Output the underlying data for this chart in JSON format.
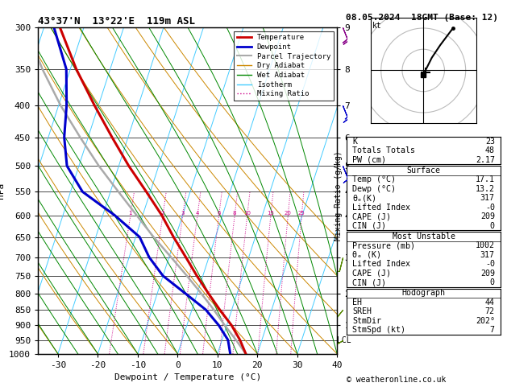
{
  "title_left": "43°37'N  13°22'E  119m ASL",
  "title_right": "08.05.2024  18GMT (Base: 12)",
  "xlabel": "Dewpoint / Temperature (°C)",
  "ylabel_left": "hPa",
  "x_min": -35,
  "x_max": 40,
  "y_pressures": [
    300,
    350,
    400,
    450,
    500,
    550,
    600,
    650,
    700,
    750,
    800,
    850,
    900,
    950,
    1000
  ],
  "pressure_min": 300,
  "pressure_max": 1000,
  "temp_profile": {
    "pressure": [
      1000,
      950,
      900,
      850,
      800,
      750,
      700,
      650,
      600,
      550,
      500,
      450,
      400,
      350,
      300
    ],
    "temp": [
      17.1,
      14.5,
      11.2,
      7.0,
      2.8,
      -1.5,
      -5.8,
      -10.5,
      -15.2,
      -21.0,
      -27.5,
      -34.0,
      -41.0,
      -48.5,
      -56.0
    ],
    "color": "#cc0000",
    "linewidth": 2.2
  },
  "dewpoint_profile": {
    "pressure": [
      1000,
      950,
      900,
      850,
      800,
      750,
      700,
      650,
      600,
      550,
      500,
      450,
      400,
      350,
      300
    ],
    "temp": [
      13.2,
      11.5,
      8.0,
      3.5,
      -3.0,
      -10.0,
      -15.0,
      -19.0,
      -27.0,
      -37.0,
      -43.0,
      -46.0,
      -48.0,
      -51.0,
      -57.5
    ],
    "color": "#0000cc",
    "linewidth": 2.2
  },
  "parcel_profile": {
    "pressure": [
      1000,
      950,
      900,
      850,
      800,
      750,
      700,
      650,
      600,
      550,
      500,
      450,
      400,
      350,
      300
    ],
    "temp": [
      17.1,
      13.5,
      9.5,
      5.5,
      1.0,
      -4.0,
      -9.5,
      -15.5,
      -21.5,
      -28.0,
      -35.0,
      -42.0,
      -49.5,
      -57.0,
      -64.5
    ],
    "color": "#aaaaaa",
    "linewidth": 1.8
  },
  "lcl_pressure": 950,
  "lcl_label": "LCL",
  "isotherm_color": "#44ccff",
  "isotherm_lw": 0.7,
  "dry_adiabat_color": "#cc8800",
  "dry_adiabat_lw": 0.7,
  "wet_adiabat_color": "#008800",
  "wet_adiabat_lw": 0.7,
  "mixing_ratio_color": "#cc0088",
  "mixing_ratio_lw": 0.7,
  "mixing_ratio_values": [
    1,
    2,
    3,
    4,
    6,
    8,
    10,
    15,
    20,
    25
  ],
  "skew_factor": 22,
  "km_tick_data": [
    [
      300,
      9
    ],
    [
      350,
      8
    ],
    [
      400,
      7
    ],
    [
      450,
      6
    ],
    [
      500,
      5
    ],
    [
      550,
      4
    ],
    [
      600,
      4
    ],
    [
      700,
      3
    ],
    [
      800,
      2
    ],
    [
      900,
      1
    ]
  ],
  "info_panel": {
    "K": 23,
    "Totals_Totals": 48,
    "PW_cm": "2.17",
    "Surface_Temp": "17.1",
    "Surface_Dewp": "13.2",
    "Surface_thetae": 317,
    "Surface_LI": "-0",
    "Surface_CAPE": 209,
    "Surface_CIN": 0,
    "MU_Pressure": 1002,
    "MU_thetae": 317,
    "MU_LI": "-0",
    "MU_CAPE": 209,
    "MU_CIN": 0,
    "EH": 44,
    "SREH": 72,
    "StmDir": "202°",
    "StmSpd_kt": 7
  },
  "legend_entries": [
    {
      "label": "Temperature",
      "color": "#cc0000",
      "lw": 2,
      "ls": "solid"
    },
    {
      "label": "Dewpoint",
      "color": "#0000cc",
      "lw": 2,
      "ls": "solid"
    },
    {
      "label": "Parcel Trajectory",
      "color": "#aaaaaa",
      "lw": 1.5,
      "ls": "solid"
    },
    {
      "label": "Dry Adiabat",
      "color": "#cc8800",
      "lw": 1,
      "ls": "solid"
    },
    {
      "label": "Wet Adiabat",
      "color": "#008800",
      "lw": 1,
      "ls": "solid"
    },
    {
      "label": "Isotherm",
      "color": "#44ccff",
      "lw": 1,
      "ls": "solid"
    },
    {
      "label": "Mixing Ratio",
      "color": "#cc0088",
      "lw": 1,
      "ls": "dotted"
    }
  ],
  "wind_barbs_right": [
    {
      "pressure": 300,
      "u": -8,
      "v": 20,
      "color": "#880088"
    },
    {
      "pressure": 400,
      "u": -6,
      "v": 15,
      "color": "#0000cc"
    },
    {
      "pressure": 500,
      "u": -4,
      "v": 10,
      "color": "#0000cc"
    },
    {
      "pressure": 700,
      "u": 2,
      "v": 8,
      "color": "#558800"
    },
    {
      "pressure": 850,
      "u": 4,
      "v": 5,
      "color": "#558800"
    },
    {
      "pressure": 950,
      "u": 5,
      "v": 3,
      "color": "#558800"
    }
  ]
}
